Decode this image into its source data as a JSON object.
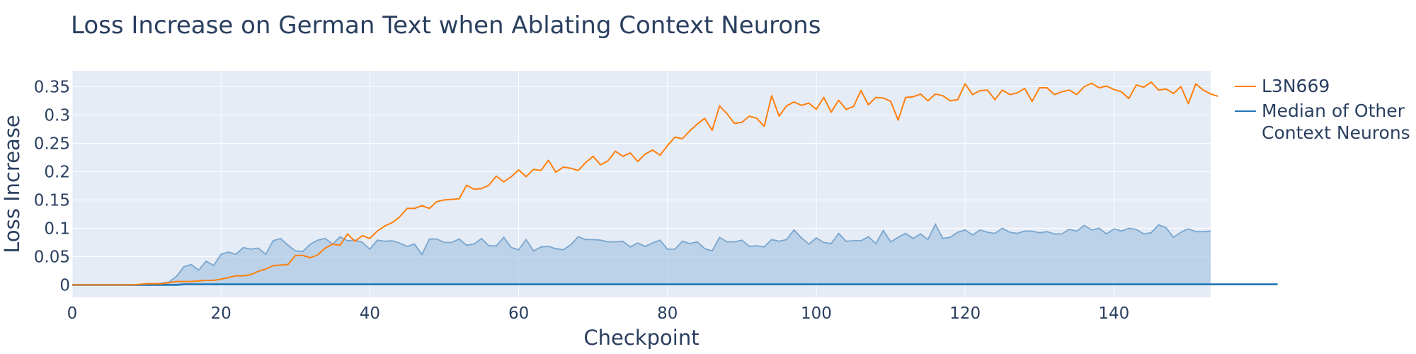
{
  "chart_data": {
    "type": "line",
    "title": "Loss Increase on German Text when Ablating Context Neurons",
    "xlabel": "Checkpoint",
    "ylabel": "Loss Increase",
    "xlim": [
      0,
      153
    ],
    "ylim": [
      -0.022,
      0.378
    ],
    "xticks": [
      0,
      20,
      40,
      60,
      80,
      100,
      120,
      140
    ],
    "yticks": [
      0,
      0.05,
      0.1,
      0.15,
      0.2,
      0.25,
      0.3,
      0.35
    ],
    "ytick_labels": [
      "0",
      "0.05",
      "0.1",
      "0.15",
      "0.2",
      "0.25",
      "0.3",
      "0.35"
    ],
    "grid": true,
    "legend_position": "right",
    "series": [
      {
        "name": "L3N669",
        "color": "#ff7f0e",
        "values": [
          0,
          0,
          0,
          0,
          0,
          0,
          0,
          0,
          0,
          0.001,
          0.002,
          0.002,
          0.002,
          0.004,
          0.006,
          0.006,
          0.006,
          0.007,
          0.008,
          0.008,
          0.01,
          0.013,
          0.016,
          0.016,
          0.018,
          0.024,
          0.028,
          0.034,
          0.035,
          0.036,
          0.052,
          0.052,
          0.048,
          0.053,
          0.065,
          0.072,
          0.07,
          0.09,
          0.077,
          0.087,
          0.082,
          0.095,
          0.104,
          0.11,
          0.12,
          0.135,
          0.135,
          0.14,
          0.135,
          0.147,
          0.15,
          0.151,
          0.152,
          0.176,
          0.169,
          0.17,
          0.176,
          0.192,
          0.182,
          0.191,
          0.203,
          0.191,
          0.204,
          0.202,
          0.22,
          0.199,
          0.208,
          0.206,
          0.202,
          0.216,
          0.227,
          0.212,
          0.219,
          0.236,
          0.227,
          0.233,
          0.218,
          0.231,
          0.238,
          0.229,
          0.246,
          0.261,
          0.258,
          0.272,
          0.284,
          0.294,
          0.273,
          0.316,
          0.302,
          0.285,
          0.287,
          0.298,
          0.294,
          0.28,
          0.334,
          0.298,
          0.316,
          0.323,
          0.317,
          0.321,
          0.31,
          0.331,
          0.305,
          0.326,
          0.31,
          0.315,
          0.343,
          0.318,
          0.331,
          0.33,
          0.324,
          0.291,
          0.331,
          0.332,
          0.337,
          0.325,
          0.337,
          0.334,
          0.325,
          0.327,
          0.355,
          0.336,
          0.343,
          0.344,
          0.327,
          0.344,
          0.336,
          0.339,
          0.347,
          0.324,
          0.348,
          0.348,
          0.336,
          0.341,
          0.344,
          0.336,
          0.35,
          0.356,
          0.348,
          0.351,
          0.345,
          0.341,
          0.329,
          0.353,
          0.349,
          0.358,
          0.344,
          0.346,
          0.338,
          0.35,
          0.32,
          0.355,
          0.344,
          0.337,
          0.333
        ]
      },
      {
        "name": "Median of Other Context Neurons",
        "color": "#1f77b4",
        "values": [
          0,
          0,
          0,
          0,
          0,
          0,
          0,
          0,
          0,
          0,
          0,
          0,
          0,
          0,
          0,
          0.001,
          0.001,
          0.001,
          0.001,
          0.001,
          0.001,
          0.001,
          0.001,
          0.001,
          0.001,
          0.001,
          0.001,
          0.001,
          0.001,
          0.001,
          0.001,
          0.001,
          0.001,
          0.001,
          0.001,
          0.001,
          0.001,
          0.001,
          0.001,
          0.001,
          0.001,
          0.001,
          0.001,
          0.001,
          0.001,
          0.001,
          0.001,
          0.001,
          0.001,
          0.001,
          0.001,
          0.001,
          0.001,
          0.001,
          0.001,
          0.001,
          0.001,
          0.001,
          0.001,
          0.001,
          0.001,
          0.001,
          0.001,
          0.001,
          0.001,
          0.001,
          0.001,
          0.001,
          0.001,
          0.001,
          0.001,
          0.001,
          0.001,
          0.001,
          0.001,
          0.001,
          0.001,
          0.001,
          0.001,
          0.001,
          0.001,
          0.001,
          0.001,
          0.001,
          0.001,
          0.001,
          0.001,
          0.001,
          0.001,
          0.001,
          0.001,
          0.001,
          0.001,
          0.001,
          0.001,
          0.001,
          0.001,
          0.001,
          0.001,
          0.001,
          0.001,
          0.001,
          0.001,
          0.001,
          0.001,
          0.001,
          0.001,
          0.001,
          0.001,
          0.001,
          0.001,
          0.001,
          0.001,
          0.001,
          0.001,
          0.001,
          0.001,
          0.001,
          0.001,
          0.001,
          0.001,
          0.001,
          0.001,
          0.001,
          0.001,
          0.001,
          0.001,
          0.001,
          0.001,
          0.001,
          0.001,
          0.001,
          0.001,
          0.001,
          0.001,
          0.001,
          0.001,
          0.001,
          0.001,
          0.001,
          0.001,
          0.001,
          0.001,
          0.001,
          0.001,
          0.001,
          0.001,
          0.001,
          0.001,
          0.001,
          0.001,
          0.001,
          0.001,
          0.001,
          0.001,
          0.001,
          0.001,
          0.001,
          0.001,
          0.001,
          0.001,
          0.001,
          0.001
        ]
      }
    ],
    "band": {
      "series": "Median of Other Context Neurons",
      "fill_color": "#a9c8e3",
      "line_color": "#7aa6cf",
      "lower": 0,
      "upper": [
        0,
        0,
        0,
        0,
        0,
        0,
        0,
        0,
        0,
        0,
        0.002,
        0.002,
        0.003,
        0.005,
        0.015,
        0.032,
        0.036,
        0.026,
        0.042,
        0.034,
        0.054,
        0.058,
        0.054,
        0.066,
        0.063,
        0.065,
        0.054,
        0.078,
        0.082,
        0.07,
        0.06,
        0.059,
        0.072,
        0.079,
        0.082,
        0.072,
        0.085,
        0.078,
        0.079,
        0.075,
        0.063,
        0.079,
        0.077,
        0.078,
        0.074,
        0.068,
        0.072,
        0.054,
        0.081,
        0.081,
        0.075,
        0.075,
        0.081,
        0.07,
        0.072,
        0.082,
        0.069,
        0.069,
        0.084,
        0.066,
        0.062,
        0.08,
        0.06,
        0.067,
        0.068,
        0.064,
        0.062,
        0.071,
        0.085,
        0.08,
        0.08,
        0.079,
        0.076,
        0.076,
        0.077,
        0.067,
        0.074,
        0.068,
        0.074,
        0.079,
        0.063,
        0.063,
        0.077,
        0.073,
        0.076,
        0.064,
        0.06,
        0.084,
        0.076,
        0.076,
        0.079,
        0.068,
        0.069,
        0.067,
        0.08,
        0.077,
        0.08,
        0.097,
        0.083,
        0.072,
        0.083,
        0.075,
        0.073,
        0.091,
        0.077,
        0.078,
        0.078,
        0.085,
        0.073,
        0.096,
        0.076,
        0.084,
        0.091,
        0.082,
        0.09,
        0.08,
        0.107,
        0.082,
        0.084,
        0.093,
        0.097,
        0.088,
        0.097,
        0.093,
        0.091,
        0.1,
        0.093,
        0.091,
        0.095,
        0.095,
        0.092,
        0.094,
        0.09,
        0.09,
        0.098,
        0.095,
        0.105,
        0.097,
        0.1,
        0.09,
        0.099,
        0.095,
        0.1,
        0.098,
        0.09,
        0.092,
        0.106,
        0.101,
        0.084,
        0.093,
        0.099,
        0.094,
        0.094,
        0.095
      ]
    },
    "colors": {
      "plot_background": "#e5ecf6",
      "grid": "#ffffff",
      "text": "#2a3f5f"
    }
  }
}
